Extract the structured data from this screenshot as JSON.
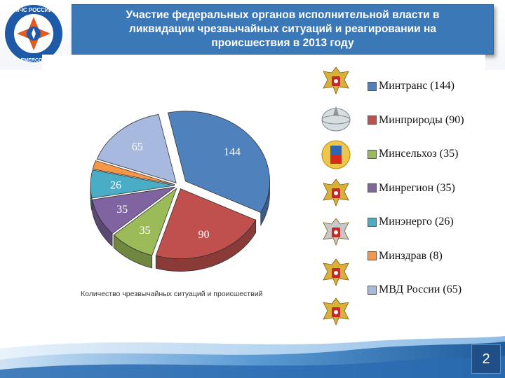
{
  "header": {
    "title_line1": "Участие федеральных органов исполнительной власти в",
    "title_line2": "ликвидации чрезвычайных ситуаций и реагировании на",
    "title_line3": "происшествия в 2013 году",
    "logo_text_top": "МЧС РОССИИ",
    "logo_text_bottom": "EMERCOM"
  },
  "chart_data": {
    "type": "pie",
    "title": "",
    "caption": "Количество чрезвычайных ситуаций и происшествий",
    "legend_position": "right",
    "slices": [
      {
        "label": "Минтранс",
        "legend": "Минтранс (144)",
        "value": 144,
        "color": "#4f81bd"
      },
      {
        "label": "Минприроды",
        "legend": "Минприроды (90)",
        "value": 90,
        "color": "#c0504d"
      },
      {
        "label": "Минсельхоз",
        "legend": "Минсельхоз (35)",
        "value": 35,
        "color": "#9bbb59"
      },
      {
        "label": "Минрегион",
        "legend": "Минрегион (35)",
        "value": 35,
        "color": "#8064a2"
      },
      {
        "label": "Минэнерго",
        "legend": "Минэнерго (26)",
        "value": 26,
        "color": "#4bacc6"
      },
      {
        "label": "Минздрав",
        "legend": "Минздрав (8)",
        "value": 8,
        "color": "#f79646"
      },
      {
        "label": "МВД России",
        "legend": "МВД России (65)",
        "value": 65,
        "color": "#a7b9df"
      }
    ]
  },
  "footer": {
    "page_number": "2"
  },
  "emblems": [
    "eagle-emblem-icon",
    "globe-emblem-icon",
    "sun-emblem-icon",
    "eagle-emblem-icon",
    "eagle-emblem-icon",
    "eagle-emblem-icon",
    "eagle-emblem-icon"
  ]
}
